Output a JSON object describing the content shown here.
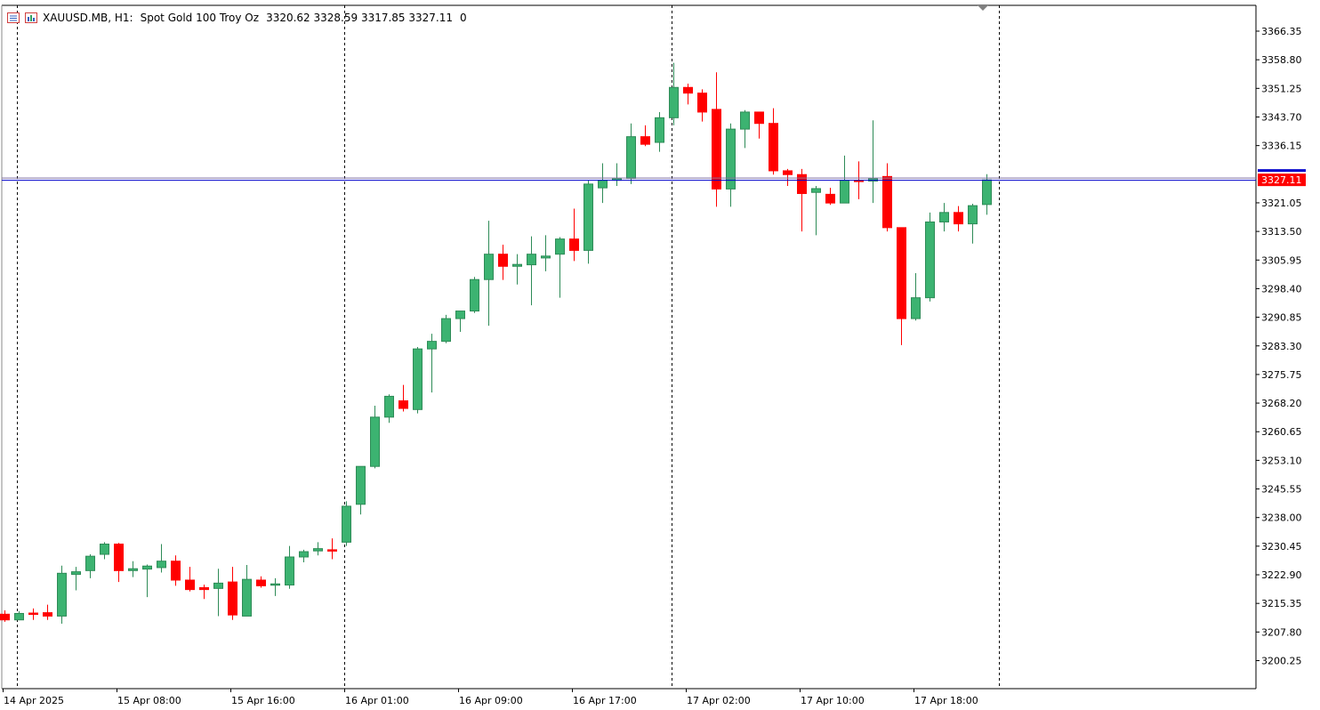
{
  "header": {
    "symbol": "XAUUSD.MB, H1:",
    "description": "Spot Gold 100 Troy Oz",
    "ohlc": "3320.62 3328.59 3317.85 3327.11",
    "extra": "0"
  },
  "colors": {
    "bull": "#3cb371",
    "bear": "#ff0000",
    "bull_wick": "#2e8b57",
    "bear_wick": "#ff0000",
    "bid_line": "#0000cc",
    "ask_line": "#7b6aa0",
    "price_tag": "#ff0000",
    "axis": "#000000",
    "separator": "#000000"
  },
  "icons": [
    "chart-window-icon",
    "chart-template-icon"
  ],
  "chart_data": {
    "type": "candlestick",
    "series_name": "XAUUSD.MB, H1",
    "y_axis_ticks": [
      "3366.35",
      "3358.80",
      "3351.25",
      "3343.70",
      "3336.15",
      "3321.05",
      "3313.50",
      "3305.95",
      "3298.40",
      "3290.85",
      "3283.30",
      "3275.75",
      "3268.20",
      "3260.65",
      "3253.10",
      "3245.55",
      "3238.00",
      "3230.45",
      "3222.90",
      "3215.35",
      "3207.80",
      "3200.25"
    ],
    "ylim": [
      3194,
      3374
    ],
    "current_price_label": "3327.11",
    "x_axis_ticks": [
      {
        "label": "14 Apr 2025",
        "index": 0
      },
      {
        "label": "15 Apr 08:00",
        "index": 8
      },
      {
        "label": "15 Apr 16:00",
        "index": 16
      },
      {
        "label": "16 Apr 01:00",
        "index": 24
      },
      {
        "label": "16 Apr 09:00",
        "index": 32
      },
      {
        "label": "16 Apr 17:00",
        "index": 40
      },
      {
        "label": "17 Apr 02:00",
        "index": 48
      },
      {
        "label": "17 Apr 10:00",
        "index": 56
      },
      {
        "label": "17 Apr 18:00",
        "index": 64
      }
    ],
    "separators_at": [
      1,
      24,
      47,
      70
    ],
    "candles": [
      {
        "o": 3212.5,
        "h": 3213.5,
        "l": 3210.5,
        "c": 3211.0
      },
      {
        "o": 3211.0,
        "h": 3213.3,
        "l": 3211.0,
        "c": 3212.7
      },
      {
        "o": 3212.8,
        "h": 3214.0,
        "l": 3211.0,
        "c": 3212.7
      },
      {
        "o": 3212.9,
        "h": 3215.0,
        "l": 3211.0,
        "c": 3212.0
      },
      {
        "o": 3212.0,
        "h": 3225.3,
        "l": 3210.0,
        "c": 3223.3
      },
      {
        "o": 3223.0,
        "h": 3225.0,
        "l": 3218.8,
        "c": 3223.7
      },
      {
        "o": 3224.0,
        "h": 3228.3,
        "l": 3222.0,
        "c": 3227.8
      },
      {
        "o": 3228.3,
        "h": 3231.5,
        "l": 3227.0,
        "c": 3231.0
      },
      {
        "o": 3231.0,
        "h": 3231.3,
        "l": 3221.0,
        "c": 3224.0
      },
      {
        "o": 3224.0,
        "h": 3226.5,
        "l": 3222.3,
        "c": 3224.5
      },
      {
        "o": 3224.4,
        "h": 3225.6,
        "l": 3217.0,
        "c": 3225.2
      },
      {
        "o": 3224.8,
        "h": 3231.0,
        "l": 3223.5,
        "c": 3226.5
      },
      {
        "o": 3226.5,
        "h": 3228.0,
        "l": 3220.0,
        "c": 3221.5
      },
      {
        "o": 3221.5,
        "h": 3225.0,
        "l": 3218.5,
        "c": 3219.0
      },
      {
        "o": 3219.5,
        "h": 3220.3,
        "l": 3216.5,
        "c": 3219.0
      },
      {
        "o": 3219.3,
        "h": 3224.5,
        "l": 3212.0,
        "c": 3220.7
      },
      {
        "o": 3221.0,
        "h": 3225.0,
        "l": 3211.0,
        "c": 3212.3
      },
      {
        "o": 3212.0,
        "h": 3225.5,
        "l": 3212.0,
        "c": 3221.7
      },
      {
        "o": 3221.5,
        "h": 3222.5,
        "l": 3219.5,
        "c": 3220.0
      },
      {
        "o": 3220.3,
        "h": 3222.0,
        "l": 3217.3,
        "c": 3220.5
      },
      {
        "o": 3220.2,
        "h": 3230.5,
        "l": 3219.2,
        "c": 3227.6
      },
      {
        "o": 3227.6,
        "h": 3229.5,
        "l": 3226.2,
        "c": 3229.0
      },
      {
        "o": 3229.2,
        "h": 3231.5,
        "l": 3228.0,
        "c": 3229.8
      },
      {
        "o": 3229.5,
        "h": 3232.5,
        "l": 3227.0,
        "c": 3229.2
      },
      {
        "o": 3231.5,
        "h": 3242.3,
        "l": 3230.5,
        "c": 3241.0
      },
      {
        "o": 3241.5,
        "h": 3251.5,
        "l": 3238.8,
        "c": 3251.5
      },
      {
        "o": 3251.5,
        "h": 3267.5,
        "l": 3251.0,
        "c": 3264.5
      },
      {
        "o": 3264.5,
        "h": 3270.5,
        "l": 3263.0,
        "c": 3270.0
      },
      {
        "o": 3268.8,
        "h": 3273.0,
        "l": 3266.0,
        "c": 3266.8
      },
      {
        "o": 3266.5,
        "h": 3283.0,
        "l": 3265.5,
        "c": 3282.5
      },
      {
        "o": 3282.5,
        "h": 3286.5,
        "l": 3271.0,
        "c": 3284.5
      },
      {
        "o": 3284.5,
        "h": 3291.5,
        "l": 3284.0,
        "c": 3290.5
      },
      {
        "o": 3290.5,
        "h": 3292.5,
        "l": 3287.0,
        "c": 3292.5
      },
      {
        "o": 3292.5,
        "h": 3301.5,
        "l": 3292.0,
        "c": 3300.8
      },
      {
        "o": 3300.8,
        "h": 3316.3,
        "l": 3288.6,
        "c": 3307.5
      },
      {
        "o": 3307.5,
        "h": 3310.0,
        "l": 3300.7,
        "c": 3304.3
      },
      {
        "o": 3304.3,
        "h": 3307.5,
        "l": 3299.5,
        "c": 3304.8
      },
      {
        "o": 3304.7,
        "h": 3312.2,
        "l": 3294.0,
        "c": 3307.5
      },
      {
        "o": 3306.5,
        "h": 3312.5,
        "l": 3303.0,
        "c": 3307.0
      },
      {
        "o": 3307.5,
        "h": 3312.0,
        "l": 3296.0,
        "c": 3311.5
      },
      {
        "o": 3311.5,
        "h": 3319.5,
        "l": 3305.7,
        "c": 3308.5
      },
      {
        "o": 3308.5,
        "h": 3327.0,
        "l": 3305.0,
        "c": 3326.0
      },
      {
        "o": 3325.0,
        "h": 3331.5,
        "l": 3321.0,
        "c": 3327.0
      },
      {
        "o": 3327.0,
        "h": 3331.5,
        "l": 3325.5,
        "c": 3327.5
      },
      {
        "o": 3327.5,
        "h": 3342.0,
        "l": 3326.0,
        "c": 3338.5
      },
      {
        "o": 3338.5,
        "h": 3341.5,
        "l": 3336.0,
        "c": 3336.5
      },
      {
        "o": 3337.0,
        "h": 3345.0,
        "l": 3334.5,
        "c": 3343.5
      },
      {
        "o": 3343.5,
        "h": 3358.0,
        "l": 3341.5,
        "c": 3351.5
      },
      {
        "o": 3351.5,
        "h": 3352.5,
        "l": 3347.0,
        "c": 3350.0
      },
      {
        "o": 3350.0,
        "h": 3351.0,
        "l": 3342.5,
        "c": 3345.0
      },
      {
        "o": 3345.7,
        "h": 3355.5,
        "l": 3320.0,
        "c": 3324.7
      },
      {
        "o": 3324.7,
        "h": 3342.0,
        "l": 3320.0,
        "c": 3340.5
      },
      {
        "o": 3340.5,
        "h": 3345.5,
        "l": 3335.5,
        "c": 3345.0
      },
      {
        "o": 3345.0,
        "h": 3345.0,
        "l": 3338.0,
        "c": 3342.0
      },
      {
        "o": 3342.0,
        "h": 3346.0,
        "l": 3328.5,
        "c": 3329.5
      },
      {
        "o": 3329.5,
        "h": 3330.0,
        "l": 3325.5,
        "c": 3328.5
      },
      {
        "o": 3328.5,
        "h": 3330.0,
        "l": 3313.5,
        "c": 3323.5
      },
      {
        "o": 3323.8,
        "h": 3325.5,
        "l": 3312.5,
        "c": 3324.8
      },
      {
        "o": 3323.3,
        "h": 3325.0,
        "l": 3320.5,
        "c": 3321.0
      },
      {
        "o": 3321.0,
        "h": 3333.5,
        "l": 3321.0,
        "c": 3327.0
      },
      {
        "o": 3327.0,
        "h": 3332.0,
        "l": 3322.0,
        "c": 3326.8
      },
      {
        "o": 3326.8,
        "h": 3342.8,
        "l": 3321.0,
        "c": 3327.5
      },
      {
        "o": 3328.0,
        "h": 3331.5,
        "l": 3313.5,
        "c": 3314.5
      },
      {
        "o": 3314.5,
        "h": 3314.5,
        "l": 3283.5,
        "c": 3290.5
      },
      {
        "o": 3290.5,
        "h": 3302.5,
        "l": 3290.0,
        "c": 3296.0
      },
      {
        "o": 3296.0,
        "h": 3318.5,
        "l": 3295.0,
        "c": 3316.0
      },
      {
        "o": 3316.0,
        "h": 3321.0,
        "l": 3313.5,
        "c": 3318.5
      },
      {
        "o": 3318.5,
        "h": 3320.2,
        "l": 3313.5,
        "c": 3315.5
      },
      {
        "o": 3315.5,
        "h": 3320.8,
        "l": 3310.3,
        "c": 3320.3
      },
      {
        "o": 3320.6,
        "h": 3328.6,
        "l": 3317.9,
        "c": 3327.1
      }
    ]
  }
}
